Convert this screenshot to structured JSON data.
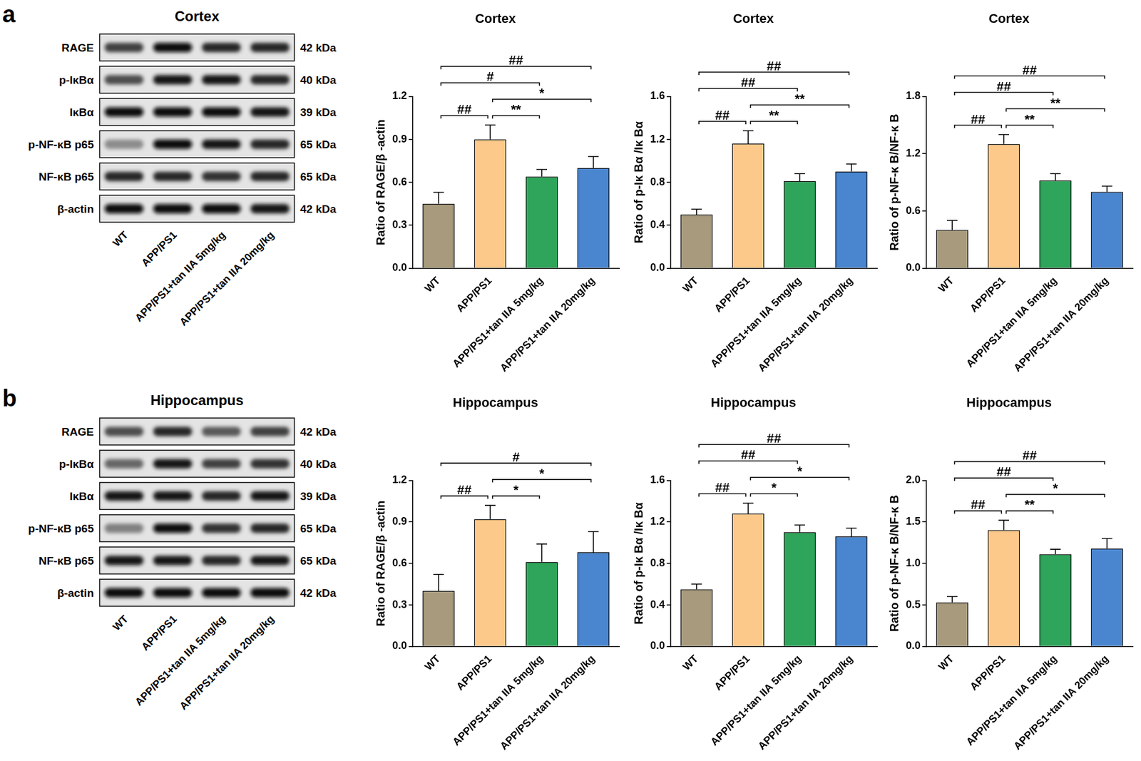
{
  "panels": [
    {
      "letter": "a",
      "blot": {
        "title": "Cortex",
        "lanes": [
          "WT",
          "APP/PS1",
          "APP/PS1+tan IIA 5mg/kg",
          "APP/PS1+tan IIA 20mg/kg"
        ],
        "rows": [
          {
            "label": "RAGE",
            "size": "42 kDa",
            "band_intensity": [
              0.75,
              0.95,
              0.85,
              0.85
            ]
          },
          {
            "label": "p-IκBα",
            "size": "40 kDa",
            "band_intensity": [
              0.7,
              0.9,
              0.9,
              0.85
            ]
          },
          {
            "label": "IκBα",
            "size": "39 kDa",
            "band_intensity": [
              0.95,
              0.95,
              0.95,
              0.9
            ]
          },
          {
            "label": "p-NF-κB p65",
            "size": "65 kDa",
            "band_intensity": [
              0.45,
              0.95,
              0.9,
              0.85
            ]
          },
          {
            "label": "NF-κB p65",
            "size": "65 kDa",
            "band_intensity": [
              0.85,
              0.85,
              0.8,
              0.85
            ]
          },
          {
            "label": "β-actin",
            "size": "42 kDa",
            "band_intensity": [
              0.95,
              0.95,
              0.95,
              0.9
            ]
          }
        ]
      }
    },
    {
      "letter": "b",
      "blot": {
        "title": "Hippocampus",
        "lanes": [
          "WT",
          "APP/PS1",
          "APP/PS1+tan IIA 5mg/kg",
          "APP/PS1+tan IIA 20mg/kg"
        ],
        "rows": [
          {
            "label": "RAGE",
            "size": "42 kDa",
            "band_intensity": [
              0.7,
              0.85,
              0.65,
              0.75
            ]
          },
          {
            "label": "p-IκBα",
            "size": "40 kDa",
            "band_intensity": [
              0.6,
              0.9,
              0.75,
              0.8
            ]
          },
          {
            "label": "IκBα",
            "size": "39 kDa",
            "band_intensity": [
              0.9,
              0.9,
              0.85,
              0.9
            ]
          },
          {
            "label": "p-NF-κB p65",
            "size": "65 kDa",
            "band_intensity": [
              0.5,
              0.95,
              0.8,
              0.85
            ]
          },
          {
            "label": "NF-κB p65",
            "size": "65 kDa",
            "band_intensity": [
              0.9,
              0.9,
              0.85,
              0.9
            ]
          },
          {
            "label": "β-actin",
            "size": "42 kDa",
            "band_intensity": [
              0.95,
              0.95,
              0.95,
              0.95
            ]
          }
        ]
      }
    }
  ],
  "chart_data": [
    {
      "type": "bar",
      "title": "Cortex",
      "ylabel": "Ratio of RAGE/β -actin",
      "categories": [
        "WT",
        "APP/PS1",
        "APP/PS1+tan IIA 5mg/kg",
        "APP/PS1+tan IIA 20mg/kg"
      ],
      "values": [
        0.45,
        0.9,
        0.64,
        0.7
      ],
      "errors": [
        0.08,
        0.1,
        0.05,
        0.08
      ],
      "colors": [
        "#a89a7c",
        "#fdc98a",
        "#2ea55a",
        "#4a86d0"
      ],
      "ylim": [
        0,
        1.2
      ],
      "yticks": [
        {
          "value": 0,
          "label": "0.0"
        },
        0.3,
        0.6,
        0.9,
        1.2
      ],
      "grid": false,
      "comparisons": [
        {
          "groups": [
            "WT",
            "APP/PS1"
          ],
          "label": "##"
        },
        {
          "groups": [
            "APP/PS1",
            "APP/PS1+tan IIA 5mg/kg"
          ],
          "label": "**"
        },
        {
          "groups": [
            "APP/PS1",
            "APP/PS1+tan IIA 20mg/kg"
          ],
          "label": "*"
        },
        {
          "groups": [
            "WT",
            "APP/PS1+tan IIA 5mg/kg"
          ],
          "label": "#"
        },
        {
          "groups": [
            "WT",
            "APP/PS1+tan IIA 20mg/kg"
          ],
          "label": "##"
        }
      ]
    },
    {
      "type": "bar",
      "title": "Cortex",
      "ylabel": "Ratio of p-Iκ Bα /Iκ Bα",
      "categories": [
        "WT",
        "APP/PS1",
        "APP/PS1+tan IIA 5mg/kg",
        "APP/PS1+tan IIA 20mg/kg"
      ],
      "values": [
        0.5,
        1.16,
        0.81,
        0.9
      ],
      "errors": [
        0.05,
        0.12,
        0.07,
        0.07
      ],
      "colors": [
        "#a89a7c",
        "#fdc98a",
        "#2ea55a",
        "#4a86d0"
      ],
      "ylim": [
        0,
        1.6
      ],
      "yticks": [
        {
          "value": 0,
          "label": "0.0"
        },
        0.4,
        0.8,
        1.2,
        1.6
      ],
      "grid": false,
      "comparisons": [
        {
          "groups": [
            "WT",
            "APP/PS1"
          ],
          "label": "##"
        },
        {
          "groups": [
            "APP/PS1",
            "APP/PS1+tan IIA 5mg/kg"
          ],
          "label": "**"
        },
        {
          "groups": [
            "APP/PS1",
            "APP/PS1+tan IIA 20mg/kg"
          ],
          "label": "**"
        },
        {
          "groups": [
            "WT",
            "APP/PS1+tan IIA 5mg/kg"
          ],
          "label": "##"
        },
        {
          "groups": [
            "WT",
            "APP/PS1+tan IIA 20mg/kg"
          ],
          "label": "##"
        }
      ]
    },
    {
      "type": "bar",
      "title": "Cortex",
      "ylabel": "Ratio of p-NF-κ B/NF-κ B",
      "categories": [
        "WT",
        "APP/PS1",
        "APP/PS1+tan IIA 5mg/kg",
        "APP/PS1+tan IIA 20mg/kg"
      ],
      "values": [
        0.4,
        1.3,
        0.92,
        0.8
      ],
      "errors": [
        0.1,
        0.1,
        0.07,
        0.06
      ],
      "colors": [
        "#a89a7c",
        "#fdc98a",
        "#2ea55a",
        "#4a86d0"
      ],
      "ylim": [
        0,
        1.8
      ],
      "yticks": [
        {
          "value": 0,
          "label": "0.0"
        },
        0.6,
        1.2,
        1.8
      ],
      "grid": false,
      "comparisons": [
        {
          "groups": [
            "WT",
            "APP/PS1"
          ],
          "label": "##"
        },
        {
          "groups": [
            "APP/PS1",
            "APP/PS1+tan IIA 5mg/kg"
          ],
          "label": "**"
        },
        {
          "groups": [
            "APP/PS1",
            "APP/PS1+tan IIA 20mg/kg"
          ],
          "label": "**"
        },
        {
          "groups": [
            "WT",
            "APP/PS1+tan IIA 5mg/kg"
          ],
          "label": "##"
        },
        {
          "groups": [
            "WT",
            "APP/PS1+tan IIA 20mg/kg"
          ],
          "label": "##"
        }
      ]
    },
    {
      "type": "bar",
      "title": "Hippocampus",
      "ylabel": "Ratio of RAGE/β -actin",
      "categories": [
        "WT",
        "APP/PS1",
        "APP/PS1+tan IIA 5mg/kg",
        "APP/PS1+tan IIA 20mg/kg"
      ],
      "values": [
        0.4,
        0.92,
        0.61,
        0.68
      ],
      "errors": [
        0.12,
        0.1,
        0.13,
        0.15
      ],
      "colors": [
        "#a89a7c",
        "#fdc98a",
        "#2ea55a",
        "#4a86d0"
      ],
      "ylim": [
        0,
        1.2
      ],
      "yticks": [
        {
          "value": 0,
          "label": "0.0"
        },
        0.3,
        0.6,
        0.9,
        1.2
      ],
      "grid": false,
      "comparisons": [
        {
          "groups": [
            "WT",
            "APP/PS1"
          ],
          "label": "##"
        },
        {
          "groups": [
            "APP/PS1",
            "APP/PS1+tan IIA 5mg/kg"
          ],
          "label": "*"
        },
        {
          "groups": [
            "APP/PS1",
            "APP/PS1+tan IIA 20mg/kg"
          ],
          "label": "*"
        },
        {
          "groups": [
            "WT",
            "APP/PS1+tan IIA 20mg/kg"
          ],
          "label": "#"
        }
      ]
    },
    {
      "type": "bar",
      "title": "Hippocampus",
      "ylabel": "Ratio of p-Iκ Bα /Iκ Bα",
      "categories": [
        "WT",
        "APP/PS1",
        "APP/PS1+tan IIA 5mg/kg",
        "APP/PS1+tan IIA 20mg/kg"
      ],
      "values": [
        0.55,
        1.28,
        1.1,
        1.06
      ],
      "errors": [
        0.05,
        0.1,
        0.07,
        0.08
      ],
      "colors": [
        "#a89a7c",
        "#fdc98a",
        "#2ea55a",
        "#4a86d0"
      ],
      "ylim": [
        0,
        1.6
      ],
      "yticks": [
        {
          "value": 0,
          "label": "0.0"
        },
        0.4,
        0.8,
        1.2,
        1.6
      ],
      "grid": false,
      "comparisons": [
        {
          "groups": [
            "WT",
            "APP/PS1"
          ],
          "label": "##"
        },
        {
          "groups": [
            "APP/PS1",
            "APP/PS1+tan IIA 5mg/kg"
          ],
          "label": "*"
        },
        {
          "groups": [
            "APP/PS1",
            "APP/PS1+tan IIA 20mg/kg"
          ],
          "label": "*"
        },
        {
          "groups": [
            "WT",
            "APP/PS1+tan IIA 5mg/kg"
          ],
          "label": "##"
        },
        {
          "groups": [
            "WT",
            "APP/PS1+tan IIA 20mg/kg"
          ],
          "label": "##"
        }
      ]
    },
    {
      "type": "bar",
      "title": "Hippocampus",
      "ylabel": "Ratio of p-NF-κ B/NF-κ B",
      "categories": [
        "WT",
        "APP/PS1",
        "APP/PS1+tan IIA 5mg/kg",
        "APP/PS1+tan IIA 20mg/kg"
      ],
      "values": [
        0.53,
        1.4,
        1.11,
        1.18
      ],
      "errors": [
        0.07,
        0.12,
        0.06,
        0.12
      ],
      "colors": [
        "#a89a7c",
        "#fdc98a",
        "#2ea55a",
        "#4a86d0"
      ],
      "ylim": [
        0,
        2.0
      ],
      "yticks": [
        {
          "value": 0,
          "label": "0.0"
        },
        0.5,
        {
          "value": 1,
          "label": "1.0"
        },
        1.5,
        {
          "value": 2,
          "label": "2.0"
        }
      ],
      "grid": false,
      "comparisons": [
        {
          "groups": [
            "WT",
            "APP/PS1"
          ],
          "label": "##"
        },
        {
          "groups": [
            "APP/PS1",
            "APP/PS1+tan IIA 5mg/kg"
          ],
          "label": "**"
        },
        {
          "groups": [
            "APP/PS1",
            "APP/PS1+tan IIA 20mg/kg"
          ],
          "label": "*"
        },
        {
          "groups": [
            "WT",
            "APP/PS1+tan IIA 5mg/kg"
          ],
          "label": "##"
        },
        {
          "groups": [
            "WT",
            "APP/PS1+tan IIA 20mg/kg"
          ],
          "label": "##"
        }
      ]
    }
  ]
}
